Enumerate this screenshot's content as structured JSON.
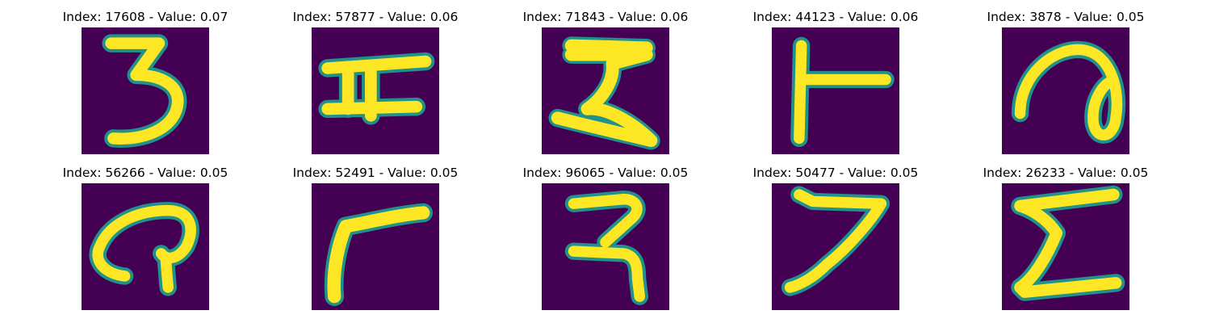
{
  "colors": {
    "background": "#440154",
    "glyph_core": "#fde725",
    "glyph_edge": "#21918c"
  },
  "panels": [
    {
      "title": "Index: 17608 - Value: 0.07",
      "glyph": "handwritten-3"
    },
    {
      "title": "Index: 57877 - Value: 0.06",
      "glyph": "handwritten-H-like"
    },
    {
      "title": "Index: 71843 - Value: 0.06",
      "glyph": "handwritten-sigma-like"
    },
    {
      "title": "Index: 44123 - Value: 0.06",
      "glyph": "handwritten-T-rotated"
    },
    {
      "title": "Index: 3878 - Value: 0.05",
      "glyph": "handwritten-loop"
    },
    {
      "title": "Index: 56266 - Value: 0.05",
      "glyph": "handwritten-curl"
    },
    {
      "title": "Index: 52491 - Value: 0.05",
      "glyph": "handwritten-r-like"
    },
    {
      "title": "Index: 96065 - Value: 0.05",
      "glyph": "handwritten-3-like"
    },
    {
      "title": "Index: 50477 - Value: 0.05",
      "glyph": "handwritten-7"
    },
    {
      "title": "Index: 26233 - Value: 0.05",
      "glyph": "handwritten-sigma-like-2"
    }
  ]
}
